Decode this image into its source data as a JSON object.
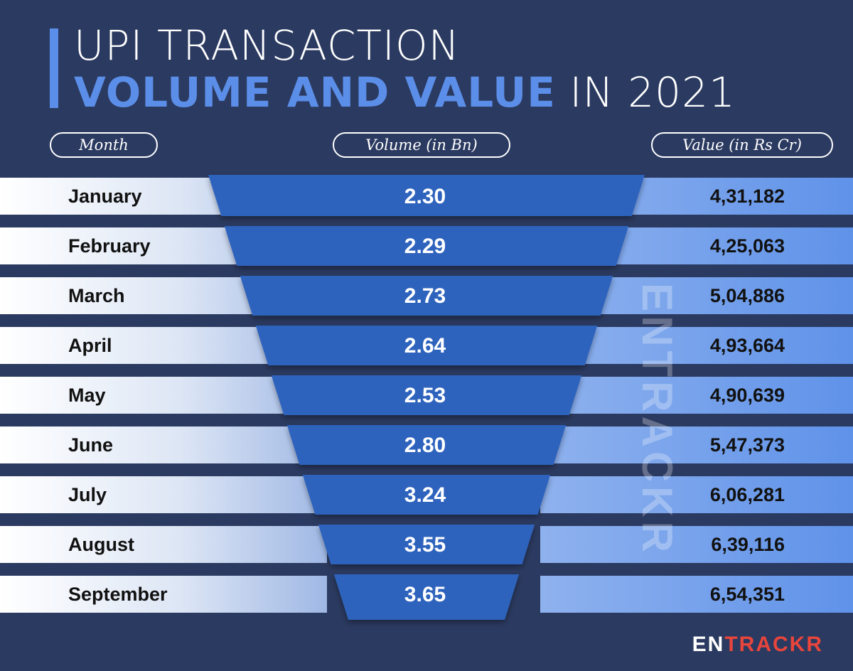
{
  "title": {
    "line1": "UPI TRANSACTION",
    "highlight": "VOLUME AND VALUE",
    "rest": " IN 2021"
  },
  "headers": {
    "month": "Month",
    "volume": "Volume (in Bn)",
    "value": "Value (in Rs Cr)"
  },
  "colors": {
    "background": "#2b3a60",
    "accent": "#5b8ee8",
    "funnel": "#2f63bd",
    "logo_red": "#e8453c"
  },
  "chart_data": {
    "type": "table",
    "categories": [
      "January",
      "February",
      "March",
      "April",
      "May",
      "June",
      "July",
      "August",
      "September"
    ],
    "series": [
      {
        "name": "Volume (in Bn)",
        "values": [
          2.3,
          2.29,
          2.73,
          2.64,
          2.53,
          2.8,
          3.24,
          3.55,
          3.65
        ],
        "labels": [
          "2.30",
          "2.29",
          "2.73",
          "2.64",
          "2.53",
          "2.80",
          "3.24",
          "3.55",
          "3.65"
        ]
      },
      {
        "name": "Value (in Rs Cr)",
        "values": [
          431182,
          425063,
          504886,
          493664,
          490639,
          547373,
          606281,
          639116,
          654351
        ],
        "labels": [
          "4,31,182",
          "4,25,063",
          "5,04,886",
          "4,93,664",
          "4,90,639",
          "5,47,373",
          "6,06,281",
          "6,39,116",
          "6,54,351"
        ]
      }
    ]
  },
  "watermark": "ENTRACKR",
  "logo": {
    "part1": "EN",
    "part2": "TRACKR"
  }
}
